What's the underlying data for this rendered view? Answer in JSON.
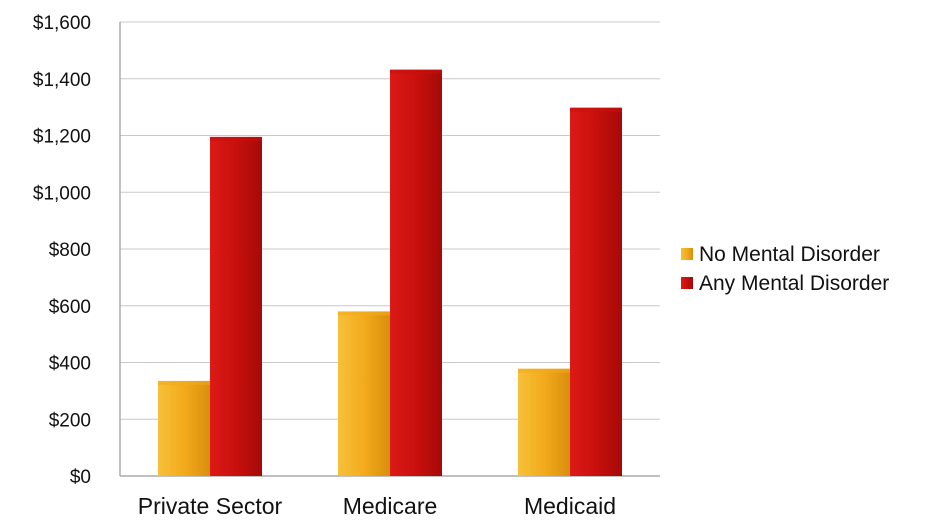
{
  "header": {
    "cut_title": ""
  },
  "chart_data": {
    "type": "bar",
    "title": "",
    "xlabel": "",
    "ylabel": "",
    "categories": [
      "Private Sector",
      "Medicare",
      "Medicaid"
    ],
    "series": [
      {
        "name": "No Mental Disorder",
        "values": [
          335,
          580,
          378
        ],
        "color": "#f3ab1c"
      },
      {
        "name": "Any Mental Disorder",
        "values": [
          1195,
          1432,
          1298
        ],
        "color": "#c8100d"
      }
    ],
    "ylim": [
      0,
      1600
    ],
    "yticks": [
      0,
      200,
      400,
      600,
      800,
      1000,
      1200,
      1400,
      1600
    ],
    "ytick_labels": [
      "$0",
      "$200",
      "$400",
      "$600",
      "$800",
      "$1,000",
      "$1,200",
      "$1,400",
      "$1,600"
    ],
    "grid": true,
    "legend_position": "right"
  }
}
